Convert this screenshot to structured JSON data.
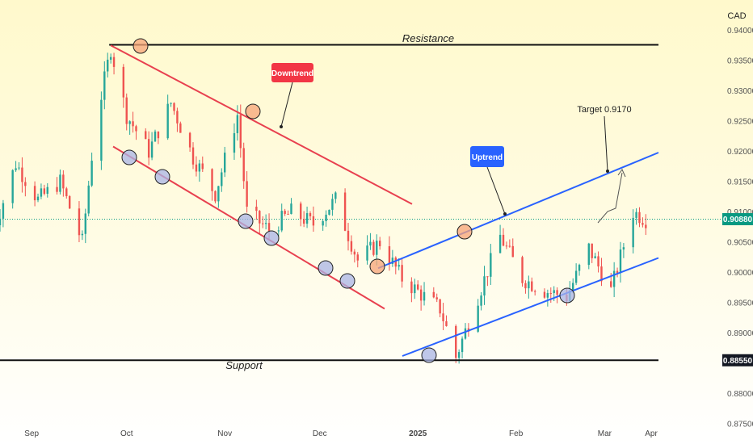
{
  "chart_data": {
    "type": "candlestick",
    "currency_label": "CAD",
    "x_labels": [
      "Sep",
      "Oct",
      "Nov",
      "Dec",
      "2025",
      "Feb",
      "Mar",
      "Apr"
    ],
    "y_ticks": [
      "0.94000",
      "0.93500",
      "0.93000",
      "0.92500",
      "0.92000",
      "0.91500",
      "0.91000",
      "0.90500",
      "0.90000",
      "0.89500",
      "0.89000",
      "0.88000",
      "0.87500"
    ],
    "ylim": [
      0.875,
      0.941
    ],
    "price_tags": [
      {
        "value": 0.9088,
        "label": "0.90880",
        "bg": "#089981"
      },
      {
        "value": 0.8855,
        "label": "0.88550",
        "bg": "#131722"
      }
    ],
    "levels": {
      "resistance": {
        "value": 0.9376,
        "label": "Resistance"
      },
      "support": {
        "value": 0.8855,
        "label": "Support"
      }
    },
    "annotations": {
      "downtrend": "Downtrend",
      "uptrend": "Uptrend",
      "target": "Target 0.9170"
    },
    "trend_channels": [
      {
        "name": "downtrend",
        "color": "#e8404f",
        "start_date": "2024-09-26",
        "end_date": "2024-12-31",
        "upper": [
          0.9375,
          0.9113
        ],
        "lower": [
          0.9208,
          0.894
        ]
      },
      {
        "name": "uptrend",
        "color": "#2962ff",
        "start_date": "2025-01-01",
        "end_date": "2025-03-25",
        "upper": [
          0.9007,
          0.9198
        ],
        "lower": [
          0.8862,
          0.9024
        ]
      }
    ],
    "ohlc_close": [
      {
        "date": "2024-08-20",
        "close": 0.907
      },
      {
        "date": "2024-08-27",
        "close": 0.918
      },
      {
        "date": "2024-09-03",
        "close": 0.912
      },
      {
        "date": "2024-09-10",
        "close": 0.915
      },
      {
        "date": "2024-09-17",
        "close": 0.905
      },
      {
        "date": "2024-09-21",
        "close": 0.924
      },
      {
        "date": "2024-09-26",
        "close": 0.937
      },
      {
        "date": "2024-10-01",
        "close": 0.926
      },
      {
        "date": "2024-10-08",
        "close": 0.92
      },
      {
        "date": "2024-10-15",
        "close": 0.928
      },
      {
        "date": "2024-10-22",
        "close": 0.919
      },
      {
        "date": "2024-10-29",
        "close": 0.913
      },
      {
        "date": "2024-11-05",
        "close": 0.926
      },
      {
        "date": "2024-11-08",
        "close": 0.91
      },
      {
        "date": "2024-11-15",
        "close": 0.907
      },
      {
        "date": "2024-11-22",
        "close": 0.91
      },
      {
        "date": "2024-11-29",
        "close": 0.908
      },
      {
        "date": "2024-12-06",
        "close": 0.912
      },
      {
        "date": "2024-12-13",
        "close": 0.902
      },
      {
        "date": "2024-12-20",
        "close": 0.905
      },
      {
        "date": "2024-12-27",
        "close": 0.899
      },
      {
        "date": "2025-01-03",
        "close": 0.896
      },
      {
        "date": "2025-01-08",
        "close": 0.894
      },
      {
        "date": "2025-01-13",
        "close": 0.886
      },
      {
        "date": "2025-01-20",
        "close": 0.896
      },
      {
        "date": "2025-01-27",
        "close": 0.906
      },
      {
        "date": "2025-02-03",
        "close": 0.899
      },
      {
        "date": "2025-02-10",
        "close": 0.897
      },
      {
        "date": "2025-02-17",
        "close": 0.896
      },
      {
        "date": "2025-02-24",
        "close": 0.904
      },
      {
        "date": "2025-03-03",
        "close": 0.897
      },
      {
        "date": "2025-03-10",
        "close": 0.91
      },
      {
        "date": "2025-03-14",
        "close": 0.9088
      }
    ],
    "target_value": 0.917
  }
}
